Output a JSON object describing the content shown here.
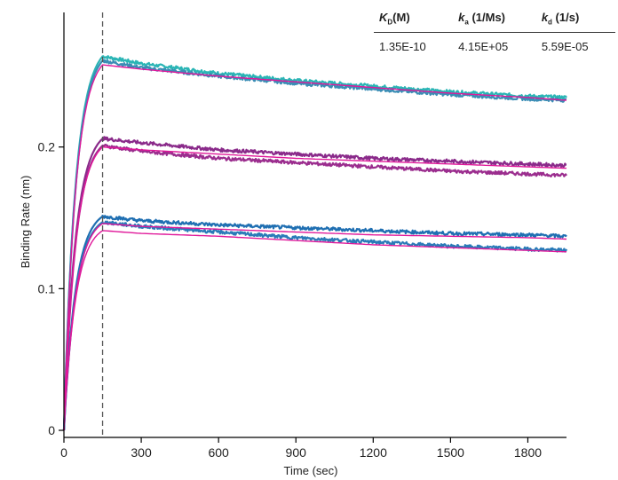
{
  "chart_data": {
    "type": "line",
    "title": "",
    "xlabel": "Time (sec)",
    "ylabel": "Binding Rate (nm)",
    "xlim": [
      0,
      1950
    ],
    "ylim": [
      -0.005,
      0.295
    ],
    "xticks": [
      0,
      300,
      600,
      900,
      1200,
      1500,
      1800
    ],
    "xtick_labels": [
      "0",
      "300",
      "600",
      "900",
      "1200",
      "1500",
      "1800"
    ],
    "yticks": [
      0,
      0.1,
      0.2
    ],
    "ytick_labels": [
      "0",
      "0.1",
      "0.2"
    ],
    "association_end_marker": 150,
    "grid": false,
    "series": [
      {
        "color": "#2ab5b5",
        "x": [
          0,
          150,
          300,
          600,
          900,
          1200,
          1500,
          1800,
          1950
        ],
        "y": [
          0,
          0.264,
          0.259,
          0.252,
          0.247,
          0.243,
          0.239,
          0.236,
          0.235
        ]
      },
      {
        "color": "#3a8db5",
        "x": [
          0,
          150,
          300,
          600,
          900,
          1200,
          1500,
          1800,
          1950
        ],
        "y": [
          0,
          0.261,
          0.256,
          0.25,
          0.245,
          0.241,
          0.237,
          0.234,
          0.233
        ]
      },
      {
        "color": "#8a2a8a",
        "x": [
          0,
          150,
          300,
          600,
          900,
          1200,
          1500,
          1800,
          1950
        ],
        "y": [
          0,
          0.206,
          0.203,
          0.198,
          0.195,
          0.192,
          0.19,
          0.188,
          0.187
        ]
      },
      {
        "color": "#9b2d8e",
        "x": [
          0,
          150,
          300,
          600,
          900,
          1200,
          1500,
          1800,
          1950
        ],
        "y": [
          0,
          0.201,
          0.197,
          0.192,
          0.189,
          0.186,
          0.183,
          0.181,
          0.18
        ]
      },
      {
        "color": "#1f6fb2",
        "x": [
          0,
          150,
          300,
          600,
          900,
          1200,
          1500,
          1800,
          1950
        ],
        "y": [
          0,
          0.151,
          0.148,
          0.145,
          0.143,
          0.141,
          0.139,
          0.138,
          0.137
        ]
      },
      {
        "color": "#2a7ab8",
        "x": [
          0,
          150,
          300,
          600,
          900,
          1200,
          1500,
          1800,
          1950
        ],
        "y": [
          0,
          0.147,
          0.144,
          0.14,
          0.136,
          0.133,
          0.13,
          0.128,
          0.127
        ]
      },
      {
        "color": "#e0189a",
        "x": [
          0,
          150,
          300,
          600,
          900,
          1200,
          1500,
          1800,
          1950
        ],
        "y": [
          0,
          0.258,
          0.255,
          0.25,
          0.246,
          0.242,
          0.238,
          0.235,
          0.233
        ]
      },
      {
        "color": "#e0189a",
        "x": [
          0,
          150,
          300,
          600,
          900,
          1200,
          1500,
          1800,
          1950
        ],
        "y": [
          0,
          0.2,
          0.198,
          0.195,
          0.192,
          0.19,
          0.188,
          0.186,
          0.185
        ]
      },
      {
        "color": "#e0189a",
        "x": [
          0,
          150,
          300,
          600,
          900,
          1200,
          1500,
          1800,
          1950
        ],
        "y": [
          0,
          0.146,
          0.144,
          0.142,
          0.14,
          0.138,
          0.137,
          0.136,
          0.135
        ]
      },
      {
        "color": "#e0189a",
        "x": [
          0,
          150,
          300,
          600,
          900,
          1200,
          1500,
          1800,
          1950
        ],
        "y": [
          0,
          0.141,
          0.139,
          0.137,
          0.134,
          0.131,
          0.129,
          0.127,
          0.126
        ]
      }
    ],
    "kinetics_table": {
      "headers": [
        {
          "main": "K",
          "sub": "D",
          "rest": "(M)"
        },
        {
          "main": "k",
          "sub": "a",
          "rest": " (1/Ms)"
        },
        {
          "main": "k",
          "sub": "d",
          "rest": " (1/s)"
        }
      ],
      "row": [
        "1.35E-10",
        "4.15E+05",
        "5.59E-05"
      ]
    }
  }
}
